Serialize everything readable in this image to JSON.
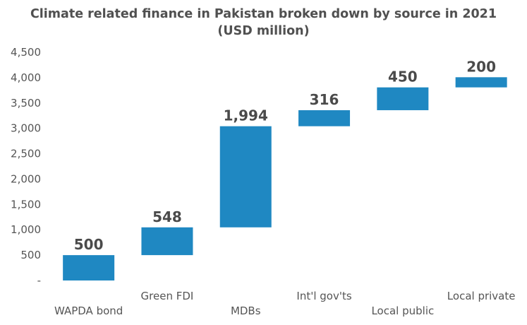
{
  "title": {
    "line1": "Climate related finance in Pakistan broken down by source in 2021",
    "line2": "(USD million)"
  },
  "chart_data": {
    "type": "bar",
    "subtype": "waterfall",
    "title": "Climate related finance in Pakistan broken down by source in 2021 (USD million)",
    "xlabel": "",
    "ylabel": "",
    "ylim": [
      0,
      4500
    ],
    "yticks": [
      "-",
      "500",
      "1,000",
      "1,500",
      "2,000",
      "2,500",
      "3,000",
      "3,500",
      "4,000",
      "4,500"
    ],
    "grid": false,
    "legend": "none",
    "bar_color": "#1f88c2",
    "categories": [
      "WAPDA bond",
      "Green FDI",
      "MDBs",
      "Int'l gov'ts",
      "Local public",
      "Local private"
    ],
    "values": [
      500,
      548,
      1994,
      316,
      450,
      200
    ],
    "value_labels": [
      "500",
      "548",
      "1,994",
      "316",
      "450",
      "200"
    ]
  }
}
